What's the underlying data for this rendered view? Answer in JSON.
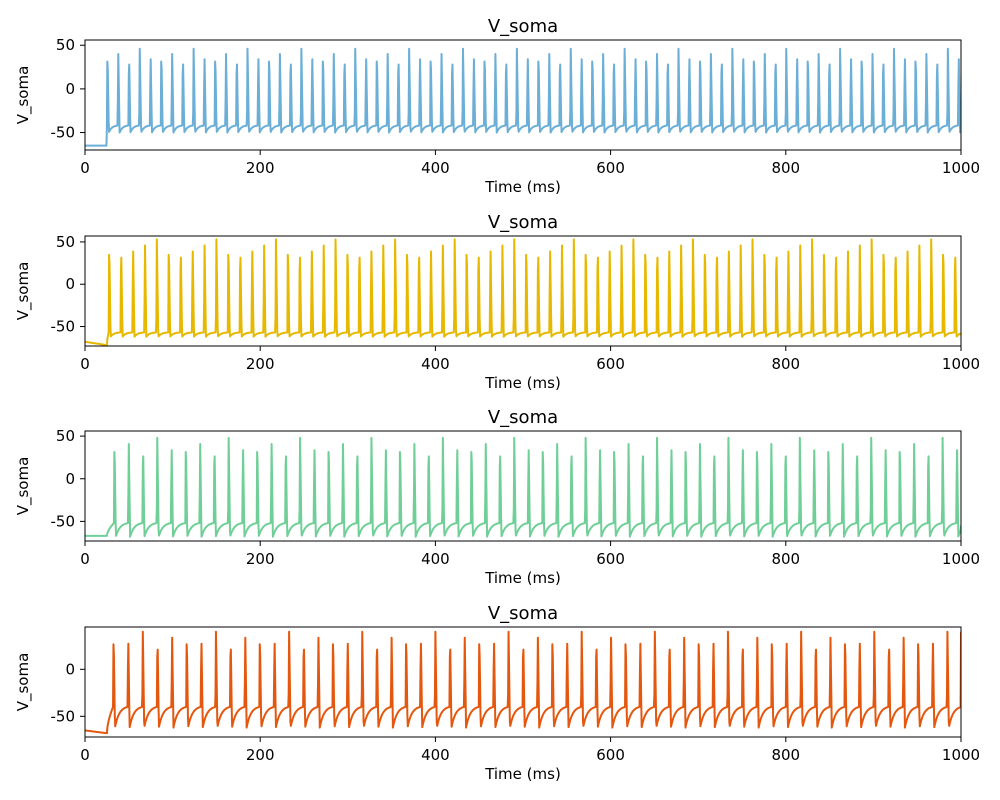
{
  "chart_data": [
    {
      "type": "line",
      "title": "V_soma",
      "xlabel": "Time (ms)",
      "ylabel": "V_soma",
      "xlim": [
        0,
        1000
      ],
      "ylim": [
        -70,
        56
      ],
      "xticks": [
        0,
        200,
        400,
        600,
        800,
        1000
      ],
      "yticks": [
        50,
        0,
        -50
      ],
      "grid": false,
      "color": "#6baed6",
      "series": [
        {
          "trace_params": {
            "rest": -65,
            "onset_ms": 25,
            "first_spike_ms": 25,
            "isi_ms": 12.3,
            "peak": 46,
            "trough": -50,
            "pre_spike": -42,
            "final_value": -40
          }
        }
      ]
    },
    {
      "type": "line",
      "title": "V_soma",
      "xlabel": "Time (ms)",
      "ylabel": "V_soma",
      "xlim": [
        0,
        1000
      ],
      "ylim": [
        -73,
        57
      ],
      "xticks": [
        0,
        200,
        400,
        600,
        800,
        1000
      ],
      "yticks": [
        50,
        0,
        -50
      ],
      "grid": false,
      "color": "#e6b800",
      "series": [
        {
          "trace_params": {
            "rest": -68,
            "pre_onset_min": -72,
            "onset_ms": 25,
            "first_spike_ms": 27,
            "isi_ms": 13.6,
            "peak": 53,
            "trough": -62,
            "pre_spike": -57,
            "final_value": -60
          }
        }
      ]
    },
    {
      "type": "line",
      "title": "V_soma",
      "xlabel": "Time (ms)",
      "ylabel": "V_soma",
      "xlim": [
        0,
        1000
      ],
      "ylim": [
        -73,
        56
      ],
      "xticks": [
        0,
        200,
        400,
        600,
        800,
        1000
      ],
      "yticks": [
        50,
        0,
        -50
      ],
      "grid": false,
      "color": "#6fcf97",
      "series": [
        {
          "trace_params": {
            "rest": -67,
            "onset_ms": 25,
            "first_spike_ms": 33,
            "isi_ms": 16.3,
            "peak": 48,
            "trough": -68,
            "pre_spike": -52,
            "final_value": -55
          }
        }
      ]
    },
    {
      "type": "line",
      "title": "V_soma",
      "xlabel": "Time (ms)",
      "ylabel": "V_soma",
      "xlim": [
        0,
        1000
      ],
      "ylim": [
        -72,
        45
      ],
      "xticks": [
        0,
        200,
        400,
        600,
        800,
        1000
      ],
      "yticks": [
        0,
        -50
      ],
      "grid": false,
      "color": "#e4570e",
      "series": [
        {
          "trace_params": {
            "rest": -65,
            "pre_onset_min": -68,
            "onset_ms": 25,
            "first_spike_ms": 32,
            "isi_ms": 16.7,
            "peak": 40,
            "trough": -62,
            "pre_spike": -40,
            "final_value": 40
          }
        }
      ]
    }
  ]
}
